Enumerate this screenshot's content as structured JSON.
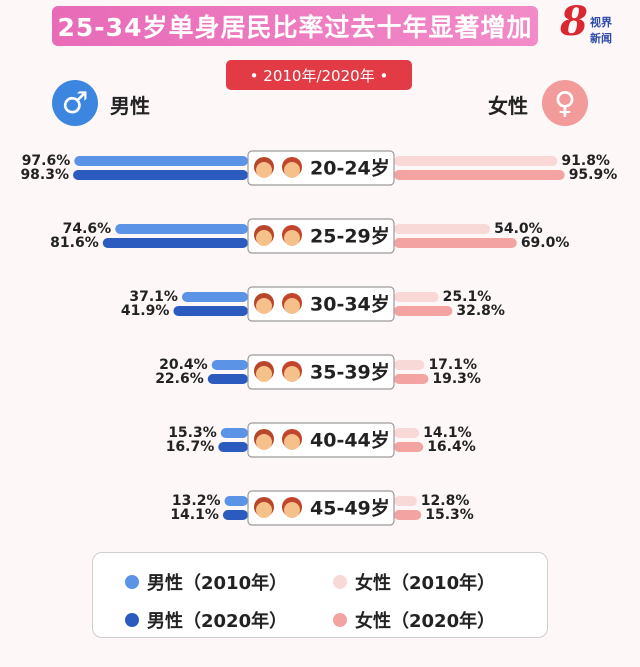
{
  "title": "25-34岁单身居民比率过去十年显著增加",
  "subtitle": "• 2010年/2020年 •",
  "logo": {
    "number": "8",
    "line1": "视界",
    "line2": "新闻"
  },
  "labels": {
    "male": "男性",
    "female": "女性"
  },
  "icons": {
    "male": "male-symbol-icon",
    "female": "female-symbol-icon"
  },
  "colors": {
    "male_2010": "#5b93e6",
    "male_2020": "#2c5bbf",
    "female_2010": "#f9d8d8",
    "female_2020": "#f4a3a3"
  },
  "chart_data": {
    "type": "bar",
    "orientation": "horizontal-diverging",
    "categories": [
      "20-24岁",
      "25-29岁",
      "30-34岁",
      "35-39岁",
      "40-44岁",
      "45-49岁"
    ],
    "series": [
      {
        "name": "男性（2010年）",
        "values": [
          97.6,
          74.6,
          37.1,
          20.4,
          15.3,
          13.2
        ]
      },
      {
        "name": "男性（2020年）",
        "values": [
          98.3,
          81.6,
          41.9,
          22.6,
          16.7,
          14.1
        ]
      },
      {
        "name": "女性（2010年）",
        "values": [
          91.8,
          54.0,
          25.1,
          17.1,
          14.1,
          12.8
        ]
      },
      {
        "name": "女性（2020年）",
        "values": [
          95.9,
          69.0,
          32.8,
          19.3,
          16.4,
          15.3
        ]
      }
    ],
    "value_labels": {
      "male_2010": [
        "97.6%",
        "74.6%",
        "37.1%",
        "20.4%",
        "15.3%",
        "13.2%"
      ],
      "male_2020": [
        "98.3%",
        "81.6%",
        "41.9%",
        "22.6%",
        "16.7%",
        "14.1%"
      ],
      "female_2010": [
        "91.8%",
        "54.0%",
        "25.1%",
        "17.1%",
        "14.1%",
        "12.8%"
      ],
      "female_2020": [
        "95.9%",
        "69.0%",
        "32.8%",
        "19.3%",
        "16.4%",
        "15.3%"
      ]
    },
    "unit": "%",
    "xlim": [
      0,
      100
    ],
    "grid": false,
    "legend_position": "bottom"
  },
  "legend": [
    {
      "label": "男性（2010年）",
      "color": "#5b93e6"
    },
    {
      "label": "女性（2010年）",
      "color": "#f9d8d8"
    },
    {
      "label": "男性（2020年）",
      "color": "#2c5bbf"
    },
    {
      "label": "女性（2020年）",
      "color": "#f4a3a3"
    }
  ]
}
